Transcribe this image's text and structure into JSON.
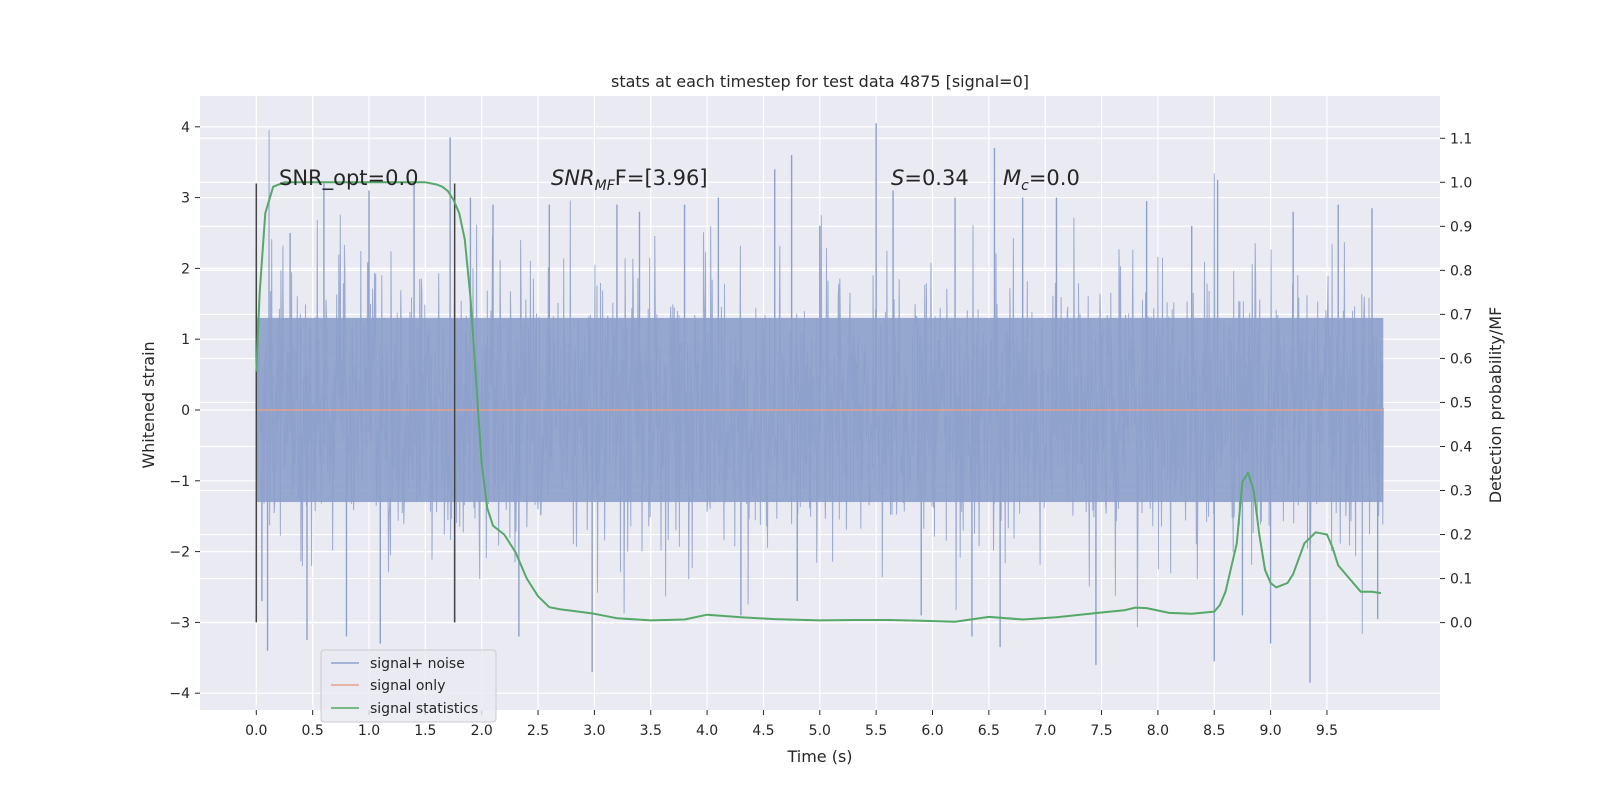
{
  "chart_data": {
    "type": "line",
    "title": "stats at each timestep for test data 4875 [signal=0]",
    "xlabel": "Time (s)",
    "ylabel": "Whitened strain",
    "y2label": "Detection probability/MF",
    "xlim": [
      -0.5,
      10.5
    ],
    "ylim": [
      -4.2,
      4.4
    ],
    "y2lim": [
      -0.18,
      1.2
    ],
    "x_ticks": [
      "0.0",
      "0.5",
      "1.0",
      "1.5",
      "2.0",
      "2.5",
      "3.0",
      "3.5",
      "4.0",
      "4.5",
      "5.0",
      "5.5",
      "6.0",
      "6.5",
      "7.0",
      "7.5",
      "8.0",
      "8.5",
      "9.0",
      "9.5"
    ],
    "y_ticks": [
      "4",
      "3",
      "2",
      "1",
      "0",
      "−1",
      "−2",
      "−3",
      "−4"
    ],
    "y2_ticks": [
      "1.1",
      "1.0",
      "0.9",
      "0.8",
      "0.7",
      "0.6",
      "0.5",
      "0.4",
      "0.3",
      "0.2",
      "0.1",
      "0.0"
    ],
    "grid": true,
    "legend_position": "lower-left",
    "annotations": {
      "snr_opt": "SNR_opt=0.0",
      "snr_mf_name": "SNR",
      "snr_mf_sub": "MF",
      "snr_mf_tail": "F=[3.96]",
      "s_name": "S",
      "s_tail": "=0.34",
      "mc_name": "M",
      "mc_sub": "c",
      "mc_tail": "=0.0"
    },
    "vlines": [
      0.0,
      1.76
    ],
    "noise_envelope": {
      "x_range": [
        0.0,
        10.0
      ],
      "core_amplitude": 1.3,
      "max_amplitude": 4.05,
      "min_amplitude": -3.8
    },
    "series": [
      {
        "name": "signal+ noise",
        "color": "#8da0cb",
        "peaks": [
          [
            0.0,
            2.3
          ],
          [
            0.05,
            -2.7
          ],
          [
            0.1,
            -3.4
          ],
          [
            0.3,
            2.5
          ],
          [
            0.45,
            -3.25
          ],
          [
            0.6,
            3.2
          ],
          [
            0.8,
            -3.2
          ],
          [
            1.0,
            3.1
          ],
          [
            1.1,
            -3.3
          ],
          [
            1.4,
            3.2
          ],
          [
            1.72,
            3.85
          ],
          [
            1.76,
            -3.0
          ],
          [
            1.9,
            3.0
          ],
          [
            2.1,
            2.9
          ],
          [
            2.33,
            -3.2
          ],
          [
            2.6,
            2.9
          ],
          [
            2.98,
            -3.7
          ],
          [
            3.2,
            2.9
          ],
          [
            3.4,
            2.8
          ],
          [
            3.8,
            2.9
          ],
          [
            4.1,
            3.0
          ],
          [
            4.3,
            -2.9
          ],
          [
            4.6,
            3.4
          ],
          [
            4.75,
            3.6
          ],
          [
            4.8,
            -2.7
          ],
          [
            5.0,
            2.6
          ],
          [
            5.5,
            4.05
          ],
          [
            5.65,
            3.1
          ],
          [
            5.9,
            -2.9
          ],
          [
            6.2,
            3.0
          ],
          [
            6.35,
            -3.2
          ],
          [
            6.55,
            3.7
          ],
          [
            6.6,
            -3.35
          ],
          [
            6.8,
            3.0
          ],
          [
            7.1,
            3.0
          ],
          [
            7.45,
            -3.6
          ],
          [
            7.9,
            2.95
          ],
          [
            8.3,
            2.6
          ],
          [
            8.5,
            -3.55
          ],
          [
            8.53,
            3.25
          ],
          [
            8.75,
            -2.9
          ],
          [
            9.0,
            -3.3
          ],
          [
            9.2,
            2.8
          ],
          [
            9.35,
            -3.85
          ],
          [
            9.6,
            2.9
          ],
          [
            9.9,
            2.85
          ],
          [
            9.95,
            -2.95
          ]
        ]
      },
      {
        "name": "signal only",
        "color": "#e8a08c",
        "x": [
          0.0,
          10.0
        ],
        "y": [
          0.0,
          0.0
        ]
      },
      {
        "name": "signal statistics",
        "color": "#55a868",
        "x": [
          0.0,
          0.03,
          0.08,
          0.15,
          0.25,
          0.4,
          0.7,
          1.0,
          1.3,
          1.5,
          1.6,
          1.65,
          1.7,
          1.75,
          1.8,
          1.85,
          1.9,
          1.95,
          2.0,
          2.05,
          2.1,
          2.15,
          2.2,
          2.3,
          2.4,
          2.5,
          2.6,
          2.7,
          2.8,
          3.0,
          3.2,
          3.5,
          3.8,
          4.0,
          4.3,
          4.6,
          5.0,
          5.3,
          5.6,
          5.9,
          6.2,
          6.5,
          6.8,
          7.1,
          7.5,
          7.7,
          7.8,
          7.9,
          8.1,
          8.3,
          8.5,
          8.55,
          8.6,
          8.7,
          8.75,
          8.8,
          8.85,
          8.9,
          8.95,
          9.0,
          9.05,
          9.1,
          9.15,
          9.2,
          9.3,
          9.4,
          9.5,
          9.55,
          9.6,
          9.7,
          9.8,
          9.9,
          9.98
        ],
        "y": [
          0.57,
          0.75,
          0.93,
          0.99,
          1.0,
          1.0,
          1.0,
          1.0,
          1.0,
          1.0,
          0.995,
          0.99,
          0.98,
          0.96,
          0.93,
          0.87,
          0.74,
          0.55,
          0.36,
          0.26,
          0.22,
          0.21,
          0.2,
          0.16,
          0.1,
          0.06,
          0.035,
          0.03,
          0.027,
          0.02,
          0.01,
          0.005,
          0.007,
          0.018,
          0.012,
          0.008,
          0.005,
          0.006,
          0.006,
          0.004,
          0.002,
          0.013,
          0.007,
          0.012,
          0.023,
          0.028,
          0.034,
          0.033,
          0.022,
          0.02,
          0.025,
          0.04,
          0.07,
          0.18,
          0.32,
          0.34,
          0.3,
          0.2,
          0.12,
          0.09,
          0.08,
          0.085,
          0.09,
          0.11,
          0.18,
          0.205,
          0.2,
          0.17,
          0.13,
          0.1,
          0.07,
          0.07,
          0.067
        ]
      }
    ]
  }
}
